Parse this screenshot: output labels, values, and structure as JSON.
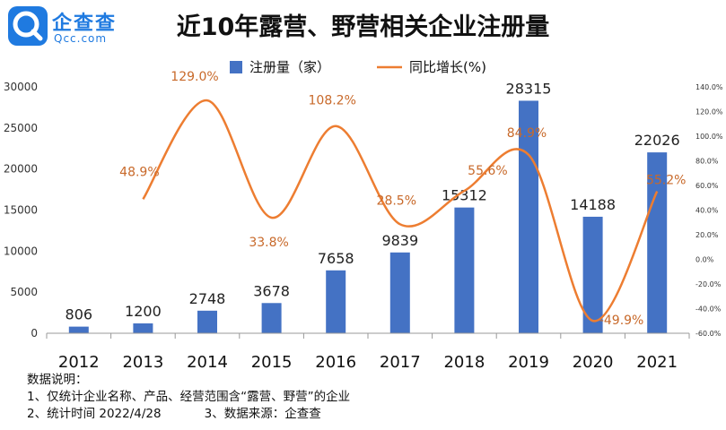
{
  "logo": {
    "cn": "企查查",
    "en": "Qcc.com",
    "icon": "qcc-logo-icon"
  },
  "title": "近10年露营、野营相关企业注册量",
  "colors": {
    "bar": "#4472C4",
    "line": "#ED7D31",
    "bar_label": "#222222",
    "line_label": "#C8692A",
    "axis": "#333333"
  },
  "chart_data": {
    "type": "bar",
    "title": "近10年露营、野营相关企业注册量",
    "categories": [
      "2012",
      "2013",
      "2014",
      "2015",
      "2016",
      "2017",
      "2018",
      "2019",
      "2020",
      "2021"
    ],
    "series": [
      {
        "name": "注册量（家）",
        "type": "bar",
        "axis": "left",
        "values": [
          806,
          1200,
          2748,
          3678,
          7658,
          9839,
          15312,
          28315,
          14188,
          22026
        ],
        "labels": [
          "806",
          "1200",
          "2748",
          "3678",
          "7658",
          "9839",
          "15312",
          "28315",
          "14188",
          "22026"
        ]
      },
      {
        "name": "同比增长(%)",
        "type": "line",
        "axis": "right",
        "values": [
          null,
          48.9,
          129.0,
          33.8,
          108.2,
          28.5,
          55.6,
          84.9,
          -49.9,
          55.2
        ],
        "labels": [
          "",
          "48.9%",
          "129.0%",
          "33.8%",
          "108.2%",
          "28.5%",
          "55.6%",
          "84.9%",
          "-49.9%",
          "55.2%"
        ]
      }
    ],
    "y_left": {
      "min": 0,
      "max": 30000,
      "ticks": [
        0,
        5000,
        10000,
        15000,
        20000,
        25000,
        30000
      ]
    },
    "y_right": {
      "min": -60,
      "max": 140,
      "ticks": [
        -60,
        -40,
        -20,
        0,
        20,
        40,
        60,
        80,
        100,
        120,
        140
      ],
      "tick_labels": [
        "-60.0%",
        "-40.0%",
        "-20.0%",
        "0.0%",
        "20.0%",
        "40.0%",
        "60.0%",
        "80.0%",
        "100.0%",
        "120.0%",
        "140.0%"
      ]
    },
    "legend_placement": "top-center",
    "grid": false
  },
  "notes": {
    "heading": "数据说明：",
    "line1": "1、仅统计企业名称、产品、经营范围含“露营、野营”的企业",
    "line2a": "2、统计时间 2022/4/28",
    "line2b": "3、数据来源：企查查"
  }
}
